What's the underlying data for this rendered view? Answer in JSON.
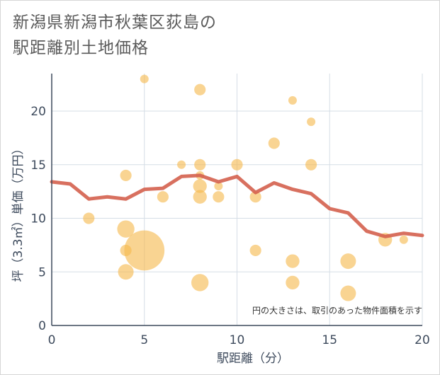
{
  "chart_data": {
    "type": "scatter",
    "title_line1": "新潟県新潟市秋葉区荻島の",
    "title_line2": "駅距離別土地価格",
    "xlabel": "駅距離（分）",
    "ylabel": "坪（3.3㎡）単価（万円）",
    "xlim": [
      0,
      20
    ],
    "ylim": [
      0,
      23.5
    ],
    "x_ticks": [
      0,
      5,
      10,
      15,
      20
    ],
    "y_ticks": [
      0,
      5,
      10,
      15,
      20
    ],
    "note": "円の大きさは、取引のあった物件面積を示す",
    "colors": {
      "bubble": "#f5b94f",
      "line": "#d4604e",
      "grid": "#d5dde6",
      "axis": "#3d4a5c"
    },
    "points": [
      {
        "x": 5,
        "y": 23,
        "size": 1
      },
      {
        "x": 8,
        "y": 22,
        "size": 2
      },
      {
        "x": 13,
        "y": 21,
        "size": 1
      },
      {
        "x": 14,
        "y": 19,
        "size": 1
      },
      {
        "x": 12,
        "y": 17,
        "size": 2
      },
      {
        "x": 7,
        "y": 15,
        "size": 1
      },
      {
        "x": 8,
        "y": 15,
        "size": 2
      },
      {
        "x": 10,
        "y": 15,
        "size": 2
      },
      {
        "x": 14,
        "y": 15,
        "size": 2
      },
      {
        "x": 4,
        "y": 14,
        "size": 2
      },
      {
        "x": 8,
        "y": 14,
        "size": 1
      },
      {
        "x": 8,
        "y": 13,
        "size": 3
      },
      {
        "x": 9,
        "y": 13,
        "size": 1
      },
      {
        "x": 6,
        "y": 12,
        "size": 2
      },
      {
        "x": 8,
        "y": 12,
        "size": 3
      },
      {
        "x": 9,
        "y": 12,
        "size": 2
      },
      {
        "x": 11,
        "y": 12,
        "size": 2
      },
      {
        "x": 2,
        "y": 10,
        "size": 2
      },
      {
        "x": 4,
        "y": 9,
        "size": 5
      },
      {
        "x": 5,
        "y": 7,
        "size": 30
      },
      {
        "x": 4,
        "y": 7,
        "size": 2
      },
      {
        "x": 11,
        "y": 7,
        "size": 2
      },
      {
        "x": 13,
        "y": 6,
        "size": 3
      },
      {
        "x": 16,
        "y": 6,
        "size": 4
      },
      {
        "x": 18,
        "y": 8,
        "size": 3
      },
      {
        "x": 19,
        "y": 8,
        "size": 1
      },
      {
        "x": 4,
        "y": 5,
        "size": 4
      },
      {
        "x": 8,
        "y": 4,
        "size": 5
      },
      {
        "x": 13,
        "y": 4,
        "size": 3
      },
      {
        "x": 16,
        "y": 3,
        "size": 4
      }
    ],
    "trend": {
      "x": [
        0,
        1,
        2,
        3,
        4,
        5,
        6,
        7,
        8,
        9,
        10,
        11,
        12,
        13,
        14,
        15,
        16,
        17,
        18,
        19,
        20
      ],
      "y": [
        13.4,
        13.2,
        11.8,
        12.0,
        11.8,
        12.7,
        12.8,
        13.9,
        14.0,
        13.4,
        13.9,
        12.4,
        13.3,
        12.7,
        12.3,
        10.9,
        10.5,
        8.8,
        8.3,
        8.6,
        8.4
      ]
    }
  }
}
